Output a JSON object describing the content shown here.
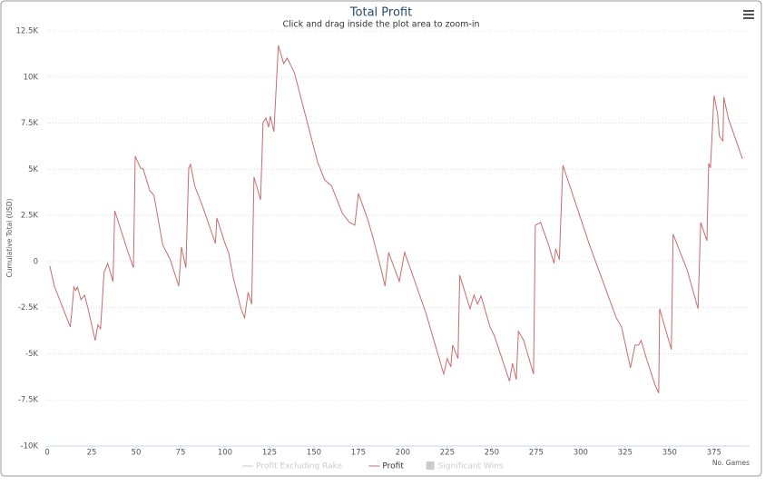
{
  "chart_data": {
    "type": "line",
    "title": "Total Profit",
    "subtitle": "Click and drag inside the plot area to zoom-in",
    "y_label": "Cumulative Total (USD)",
    "x_label": "No. Games",
    "xlim": [
      0,
      395
    ],
    "xticks": [
      0,
      25,
      50,
      75,
      100,
      125,
      150,
      175,
      200,
      225,
      250,
      275,
      300,
      325,
      350,
      375
    ],
    "ylim": [
      -10000,
      12500
    ],
    "yticks": [
      {
        "value": -10000,
        "label": "-10K"
      },
      {
        "value": -7500,
        "label": "-7.5K"
      },
      {
        "value": -5000,
        "label": "-5K"
      },
      {
        "value": -2500,
        "label": "-2.5K"
      },
      0,
      {
        "value": 2500,
        "label": "2.5K"
      },
      {
        "value": 5000,
        "label": "5K"
      },
      {
        "value": 7500,
        "label": "7.5K"
      },
      {
        "value": 10000,
        "label": "10K"
      },
      {
        "value": 12500,
        "label": "12.5K"
      }
    ],
    "grid": true,
    "series": [
      {
        "name": "Profit Excluding Rake",
        "color": "#cccccc",
        "visible": false
      },
      {
        "name": "Profit",
        "color": "#c96c6e",
        "visible": true,
        "x": [
          1.5,
          4,
          9,
          13,
          14,
          15,
          16,
          17,
          19,
          21,
          23,
          27,
          28.5,
          30,
          32,
          34,
          37,
          38,
          45,
          48.5,
          49.5,
          52.5,
          54,
          57.7,
          60,
          65,
          69,
          74,
          75.5,
          78,
          79.6,
          80.6,
          83,
          87,
          94.6,
          95.4,
          100,
          102,
          104.6,
          109,
          111,
          113,
          115,
          116.3,
          120,
          121.4,
          123,
          124.5,
          125.5,
          127.5,
          130,
          133,
          135,
          139,
          152,
          156,
          160,
          166,
          170,
          173,
          175,
          180,
          183,
          188,
          190,
          192,
          198,
          201,
          205,
          213,
          223,
          225,
          227,
          228,
          231,
          232,
          237.8,
          240,
          242,
          244,
          249,
          251.5,
          260,
          261.7,
          263.8,
          265,
          268,
          273.5,
          274.5,
          277.5,
          282,
          285,
          286,
          288,
          290,
          305,
          320,
          323,
          328,
          330.6,
          332.6,
          334,
          337,
          342,
          343.9,
          344.4,
          351,
          352,
          360,
          366,
          367.5,
          371,
          372,
          373,
          375,
          377,
          378,
          380,
          380.5,
          383,
          391
        ],
        "values": [
          -246,
          -1330,
          -2560,
          -3540,
          -2560,
          -1380,
          -1570,
          -1380,
          -2070,
          -1820,
          -2560,
          -4280,
          -3440,
          -3640,
          -590,
          -100,
          -1080,
          2750,
          640,
          -340,
          5710,
          5070,
          5020,
          3840,
          3590,
          890,
          150,
          -1330,
          790,
          -340,
          5070,
          5270,
          4080,
          3100,
          980,
          2360,
          980,
          490,
          -840,
          -2560,
          -3050,
          -1670,
          -2310,
          4580,
          3350,
          7530,
          7770,
          7280,
          7870,
          7040,
          11710,
          10730,
          11020,
          10240,
          5410,
          4430,
          4080,
          2610,
          2120,
          1970,
          3690,
          2360,
          1380,
          -490,
          -1330,
          490,
          -1080,
          490,
          -590,
          -2800,
          -6100,
          -5260,
          -5710,
          -4530,
          -5260,
          -740,
          -2560,
          -1820,
          -2310,
          -1870,
          -3540,
          -4030,
          -6490,
          -5510,
          -6400,
          -3790,
          -4280,
          -6100,
          1970,
          2120,
          890,
          -100,
          690,
          100,
          5220,
          890,
          -3050,
          -3540,
          -5760,
          -4530,
          -4530,
          -4280,
          -5260,
          -6740,
          -7130,
          -2560,
          -4770,
          1480,
          -490,
          -2560,
          2120,
          1130,
          5320,
          5070,
          9000,
          8020,
          6790,
          6540,
          8900,
          7770,
          5560
        ]
      },
      {
        "name": "Significant Wins",
        "color": "#cccccc",
        "visible": false
      }
    ]
  }
}
